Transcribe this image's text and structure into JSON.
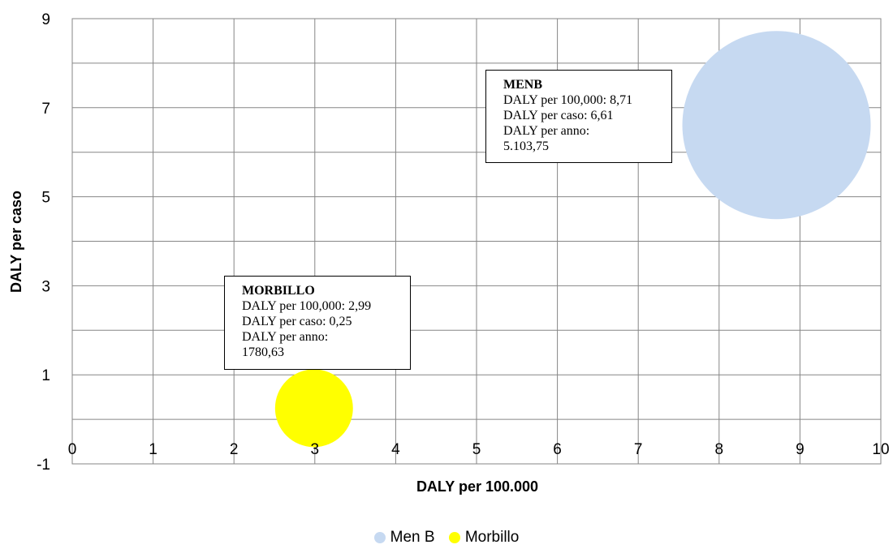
{
  "chart_data": {
    "type": "bubble",
    "xlabel": "DALY per 100.000",
    "ylabel": "DALY per caso",
    "xlim": [
      0,
      10
    ],
    "ylim": [
      -1,
      9
    ],
    "x_ticks": [
      0,
      1,
      2,
      3,
      4,
      5,
      6,
      7,
      8,
      9,
      10
    ],
    "y_ticks": [
      -1,
      1,
      3,
      5,
      7,
      9
    ],
    "grid": true,
    "legend_position": "bottom",
    "series": [
      {
        "name": "Men B",
        "x": 8.71,
        "y": 6.61,
        "size": 5103.75,
        "color": "#c6d9f1"
      },
      {
        "name": "Morbillo",
        "x": 2.99,
        "y": 0.25,
        "size": 1780.63,
        "color": "#ffff00"
      }
    ],
    "annotations": [
      {
        "title": "MENB",
        "lines": [
          "DALY per 100,000: 8,71",
          "DALY per caso: 6,61",
          "DALY per anno:",
          "5.103,75"
        ]
      },
      {
        "title": "MORBILLO",
        "lines": [
          "DALY per 100,000: 2,99",
          "DALY per caso: 0,25",
          "DALY per anno:",
          "1780,63"
        ]
      }
    ]
  }
}
